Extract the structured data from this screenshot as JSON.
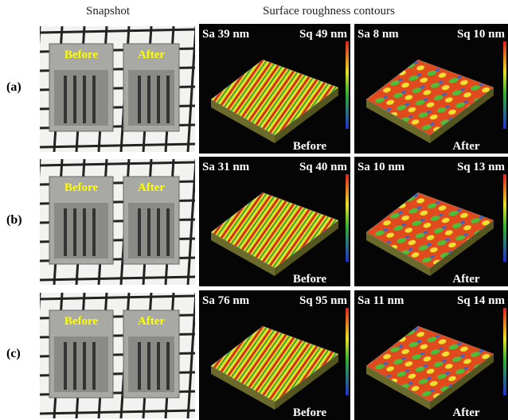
{
  "headers": {
    "snapshot": "Snapshot",
    "contours": "Surface roughness contours"
  },
  "rows": [
    {
      "label": "(a)",
      "photo": {
        "before": "Before",
        "after": "After"
      },
      "panels": [
        {
          "sa": "Sa 39 nm",
          "sq": "Sq 49 nm",
          "state": "Before"
        },
        {
          "sa": "Sa 8 nm",
          "sq": "Sq 10 nm",
          "state": "After"
        }
      ]
    },
    {
      "label": "(b)",
      "photo": {
        "before": "Before",
        "after": "After"
      },
      "panels": [
        {
          "sa": "Sa 31 nm",
          "sq": "Sq 40 nm",
          "state": "Before"
        },
        {
          "sa": "Sa 10 nm",
          "sq": "Sq 13 nm",
          "state": "After"
        }
      ]
    },
    {
      "label": "(c)",
      "photo": {
        "before": "Before",
        "after": "After"
      },
      "panels": [
        {
          "sa": "Sa 76 nm",
          "sq": "Sq 95 nm",
          "state": "Before"
        },
        {
          "sa": "Sa 11 nm",
          "sq": "Sq 14 nm",
          "state": "After"
        }
      ]
    }
  ]
}
